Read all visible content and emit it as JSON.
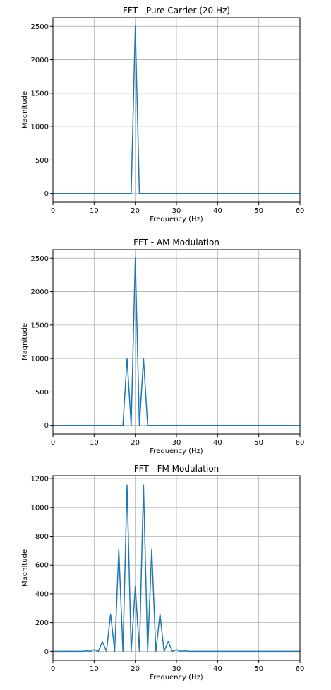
{
  "chart_data": [
    {
      "type": "line",
      "title": "FFT - Pure Carrier (20 Hz)",
      "xlabel": "Frequency (Hz)",
      "ylabel": "Magnitude",
      "xlim": [
        0,
        60
      ],
      "ylim": [
        -130,
        2630
      ],
      "xticks": [
        0,
        10,
        20,
        30,
        40,
        50,
        60
      ],
      "yticks": [
        0,
        500,
        1000,
        1500,
        2000,
        2500
      ],
      "grid": true,
      "color": "#1f77b4",
      "series": [
        {
          "x": [
            0,
            19,
            20,
            21,
            60
          ],
          "y": [
            0,
            0,
            2500,
            0,
            0
          ]
        }
      ]
    },
    {
      "type": "line",
      "title": "FFT - AM Modulation",
      "xlabel": "Frequency (Hz)",
      "ylabel": "Magnitude",
      "xlim": [
        0,
        60
      ],
      "ylim": [
        -130,
        2630
      ],
      "xticks": [
        0,
        10,
        20,
        30,
        40,
        50,
        60
      ],
      "yticks": [
        0,
        500,
        1000,
        1500,
        2000,
        2500
      ],
      "grid": true,
      "color": "#1f77b4",
      "series": [
        {
          "x": [
            0,
            17,
            18,
            19,
            20,
            21,
            22,
            23,
            60
          ],
          "y": [
            0,
            0,
            1000,
            0,
            2500,
            0,
            1000,
            0,
            0
          ]
        }
      ]
    },
    {
      "type": "line",
      "title": "FFT - FM Modulation",
      "xlabel": "Frequency (Hz)",
      "ylabel": "Magnitude",
      "xlim": [
        0,
        60
      ],
      "ylim": [
        -62,
        1220
      ],
      "xticks": [
        0,
        10,
        20,
        30,
        40,
        50,
        60
      ],
      "yticks": [
        0,
        200,
        400,
        600,
        800,
        1000,
        1200
      ],
      "grid": true,
      "color": "#1f77b4",
      "series": [
        {
          "x": [
            0,
            7,
            8,
            9,
            10,
            11,
            12,
            13,
            14,
            15,
            16,
            17,
            18,
            19,
            20,
            21,
            22,
            23,
            24,
            25,
            26,
            27,
            28,
            29,
            30,
            31,
            32,
            33,
            60
          ],
          "y": [
            0,
            0,
            3,
            0,
            12,
            0,
            68,
            0,
            260,
            0,
            707,
            0,
            1155,
            0,
            450,
            0,
            1155,
            0,
            707,
            0,
            260,
            0,
            68,
            0,
            12,
            0,
            3,
            0,
            0
          ]
        }
      ]
    }
  ]
}
